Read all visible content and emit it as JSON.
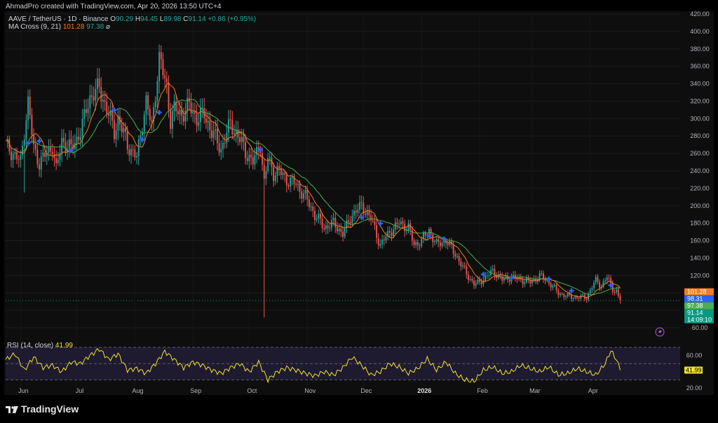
{
  "header": {
    "text": "AhmadPro created with TradingView.com, Apr 20, 2026 13:50 UTC+4"
  },
  "legend": {
    "symbol": "AAVE / TetherUS · 1D · Binance",
    "o_label": "O",
    "o": "90.29",
    "h_label": "H",
    "h": "94.45",
    "l_label": "L",
    "l": "89.98",
    "c_label": "C",
    "c": "91.14",
    "change": "+0.86 (+0.95%)",
    "ma_label": "MA Cross (9, 21)",
    "ma_fast": "101.28",
    "ma_slow": "97.38",
    "ma_icon": "⌀"
  },
  "rsi_legend": {
    "label": "RSI (14, close)",
    "value": "41.99"
  },
  "footer": {
    "brand": "TradingView"
  },
  "colors": {
    "up": "#26a69a",
    "down": "#ef5350",
    "ma_fast": "#f57c22",
    "ma_slow": "#4caf50",
    "cross": "#2962ff",
    "rsi": "#f2e22e"
  },
  "chart_data": [
    {
      "type": "candlestick",
      "title": "AAVE / TetherUS · 1D · Binance",
      "y_ticks": [
        60,
        80,
        100,
        120,
        140,
        160,
        180,
        200,
        220,
        240,
        260,
        280,
        300,
        320,
        340,
        360,
        380,
        400,
        420
      ],
      "y_tick_labels": [
        "60.00",
        "80.00",
        "100.00",
        "120.00",
        "140.00",
        "160.00",
        "180.00",
        "200.00",
        "220.00",
        "240.00",
        "260.00",
        "280.00",
        "300.00",
        "320.00",
        "340.00",
        "360.00",
        "380.00",
        "400.00",
        "420.00"
      ],
      "ylim": [
        60,
        420
      ],
      "x_labels": [
        "Jun",
        "Jul",
        "Aug",
        "Sep",
        "Oct",
        "Nov",
        "Dec",
        "2026",
        "Feb",
        "Mar",
        "Apr"
      ],
      "x_label_days": [
        8,
        38,
        69,
        100,
        130,
        161,
        191,
        222,
        253,
        281,
        312
      ],
      "close_series": {
        "name": "AAVE / TetherUS",
        "days": [
          0,
          8,
          12,
          15,
          18,
          25,
          27,
          30,
          35,
          40,
          45,
          50,
          55,
          58,
          60,
          65,
          70,
          73,
          75,
          78,
          82,
          86,
          88,
          90,
          94,
          98,
          102,
          106,
          110,
          115,
          120,
          124,
          128,
          132,
          136,
          138,
          140,
          143,
          146,
          150,
          155,
          160,
          165,
          170,
          175,
          180,
          185,
          190,
          195,
          200,
          205,
          210,
          215,
          218,
          222,
          226,
          230,
          235,
          240,
          245,
          250,
          253,
          256,
          260,
          265,
          270,
          275,
          280,
          285,
          290,
          295,
          300,
          305,
          310,
          315,
          318,
          321,
          324,
          326,
          327,
          328
        ],
        "close": [
          270,
          250,
          320,
          265,
          250,
          268,
          240,
          275,
          265,
          285,
          325,
          335,
          305,
          285,
          300,
          270,
          255,
          295,
          320,
          290,
          370,
          335,
          300,
          310,
          305,
          315,
          300,
          305,
          285,
          265,
          295,
          280,
          262,
          250,
          270,
          225,
          255,
          238,
          240,
          230,
          225,
          210,
          190,
          175,
          180,
          168,
          190,
          200,
          185,
          155,
          170,
          180,
          175,
          155,
          160,
          172,
          155,
          160,
          145,
          125,
          110,
          112,
          118,
          125,
          115,
          118,
          115,
          112,
          120,
          112,
          100,
          96,
          95,
          95,
          115,
          108,
          118,
          105,
          102,
          95,
          91.14
        ]
      },
      "wick_spikes": [
        {
          "day": 82,
          "high": 385
        },
        {
          "day": 138,
          "low": 72
        },
        {
          "day": 10,
          "low": 215
        }
      ],
      "ma_fast": {
        "name": "MA 9",
        "last": 101.28
      },
      "ma_slow": {
        "name": "MA 21",
        "last": 97.38
      },
      "cross_days": [
        12,
        18,
        35,
        58,
        73,
        82,
        136,
        190,
        200,
        226,
        234,
        255,
        270,
        290,
        302,
        323
      ],
      "price_tags": [
        {
          "value": 101.28,
          "text": "101.28",
          "color": "#f57c22"
        },
        {
          "value": 98.31,
          "text": "98.31",
          "color": "#2962ff"
        },
        {
          "value": 97.38,
          "text": "97.38",
          "color": "#4caf50"
        },
        {
          "value": 91.14,
          "text": "91.14",
          "sub": "14:09:10",
          "color": "#089981"
        }
      ]
    },
    {
      "type": "line",
      "title": "RSI (14, close)",
      "y_ticks": [
        20,
        60
      ],
      "y_tick_labels": [
        "20.00",
        "60.00"
      ],
      "bands": [
        30,
        70
      ],
      "last": {
        "value": 41.99,
        "text": "41.99"
      },
      "days": [
        0,
        5,
        10,
        15,
        20,
        25,
        30,
        35,
        40,
        45,
        50,
        55,
        60,
        65,
        70,
        75,
        80,
        85,
        90,
        95,
        100,
        105,
        110,
        115,
        120,
        125,
        130,
        135,
        140,
        145,
        150,
        155,
        160,
        165,
        170,
        175,
        180,
        185,
        190,
        195,
        200,
        205,
        210,
        215,
        220,
        225,
        230,
        235,
        240,
        245,
        250,
        255,
        260,
        265,
        270,
        275,
        280,
        285,
        290,
        295,
        300,
        305,
        310,
        315,
        320,
        323,
        326,
        328
      ],
      "values": [
        55,
        62,
        42,
        58,
        45,
        48,
        40,
        52,
        50,
        60,
        68,
        55,
        62,
        42,
        44,
        38,
        50,
        65,
        55,
        45,
        52,
        48,
        42,
        38,
        45,
        50,
        40,
        52,
        30,
        40,
        45,
        42,
        38,
        35,
        40,
        36,
        45,
        58,
        48,
        36,
        40,
        50,
        46,
        38,
        44,
        56,
        42,
        52,
        38,
        30,
        28,
        42,
        46,
        38,
        40,
        48,
        44,
        40,
        46,
        36,
        38,
        44,
        40,
        36,
        50,
        66,
        55,
        41.99
      ]
    }
  ]
}
